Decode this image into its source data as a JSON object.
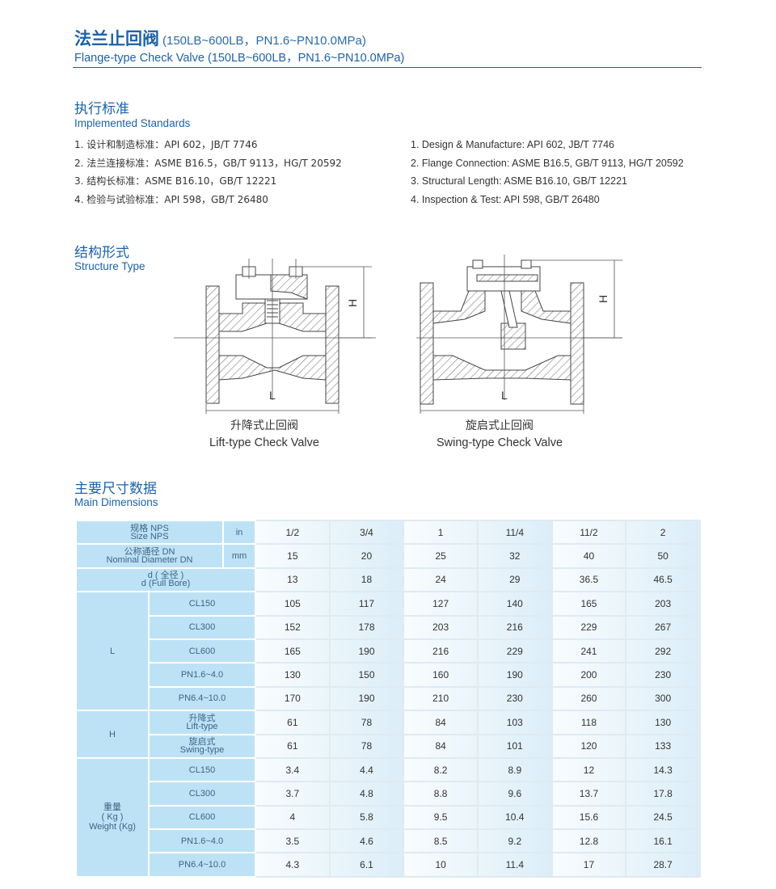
{
  "header": {
    "title_cn": "法兰止回阀",
    "title_spec": "(150LB~600LB，PN1.6~PN10.0MPa)",
    "title_en": "Flange-type Check Valve (150LB~600LB，PN1.6~PN10.0MPa)"
  },
  "standards": {
    "heading_cn": "执行标准",
    "heading_en": "Implemented Standards",
    "items_cn": [
      "1.  设计和制造标准：API 602，JB/T 7746",
      "2.  法兰连接标准：ASME B16.5，GB/T 9113，HG/T 20592",
      "3.  结构长标准：ASME B16.10，GB/T 12221",
      "4.  检验与试验标准：API 598，GB/T 26480"
    ],
    "items_en": [
      "1.  Design & Manufacture: API 602, JB/T 7746",
      "2.  Flange Connection: ASME B16.5, GB/T 9113, HG/T 20592",
      "3.  Structural Length: ASME B16.10, GB/T 12221",
      "4.  Inspection & Test: API 598, GB/T 26480"
    ]
  },
  "structure": {
    "heading_cn": "结构形式",
    "heading_en": "Structure Type",
    "lift": {
      "cn": "升降式止回阀",
      "en": "Lift-type Check Valve",
      "dim_h": "H",
      "dim_l": "L"
    },
    "swing": {
      "cn": "旋启式止回阀",
      "en": "Swing-type Check Valve",
      "dim_h": "H",
      "dim_l": "L"
    }
  },
  "dimensions": {
    "heading_cn": "主要尺寸数据",
    "heading_en": "Main Dimensions",
    "top_rows": [
      {
        "cn": "规格 NPS",
        "en": "Size NPS",
        "unit": "in",
        "values": [
          "1/2",
          "3/4",
          "1",
          "11/4",
          "11/2",
          "2"
        ]
      },
      {
        "cn": "公称通径 DN",
        "en": "Nominal Diameter DN",
        "unit": "mm",
        "values": [
          "15",
          "20",
          "25",
          "32",
          "40",
          "50"
        ]
      },
      {
        "cn": "d ( 全径 )",
        "en": "d (Full Bore)",
        "unit": "",
        "values": [
          "13",
          "18",
          "24",
          "29",
          "36.5",
          "46.5"
        ]
      }
    ],
    "groups": [
      {
        "label": [
          "L"
        ],
        "rows": [
          {
            "sub": [
              "CL150"
            ],
            "values": [
              "105",
              "117",
              "127",
              "140",
              "165",
              "203"
            ]
          },
          {
            "sub": [
              "CL300"
            ],
            "values": [
              "152",
              "178",
              "203",
              "216",
              "229",
              "267"
            ]
          },
          {
            "sub": [
              "CL600"
            ],
            "values": [
              "165",
              "190",
              "216",
              "229",
              "241",
              "292"
            ]
          },
          {
            "sub": [
              "PN1.6~4.0"
            ],
            "values": [
              "130",
              "150",
              "160",
              "190",
              "200",
              "230"
            ]
          },
          {
            "sub": [
              "PN6.4~10.0"
            ],
            "values": [
              "170",
              "190",
              "210",
              "230",
              "260",
              "300"
            ]
          }
        ]
      },
      {
        "label": [
          "H"
        ],
        "rows": [
          {
            "sub": [
              "升降式",
              "Lift-type"
            ],
            "values": [
              "61",
              "78",
              "84",
              "103",
              "118",
              "130"
            ]
          },
          {
            "sub": [
              "旋启式",
              "Swing-type"
            ],
            "values": [
              "61",
              "78",
              "84",
              "101",
              "120",
              "133"
            ]
          }
        ]
      },
      {
        "label": [
          "重量",
          "( Kg )",
          "Weight (Kg)"
        ],
        "rows": [
          {
            "sub": [
              "CL150"
            ],
            "values": [
              "3.4",
              "4.4",
              "8.2",
              "8.9",
              "12",
              "14.3"
            ]
          },
          {
            "sub": [
              "CL300"
            ],
            "values": [
              "3.7",
              "4.8",
              "8.8",
              "9.6",
              "13.7",
              "17.8"
            ]
          },
          {
            "sub": [
              "CL600"
            ],
            "values": [
              "4",
              "5.8",
              "9.5",
              "10.4",
              "15.6",
              "24.5"
            ]
          },
          {
            "sub": [
              "PN1.6~4.0"
            ],
            "values": [
              "3.5",
              "4.6",
              "8.5",
              "9.2",
              "12.8",
              "16.1"
            ]
          },
          {
            "sub": [
              "PN6.4~10.0"
            ],
            "values": [
              "4.3",
              "6.1",
              "10",
              "11.4",
              "17",
              "28.7"
            ]
          }
        ]
      }
    ]
  },
  "colors": {
    "brand": "#1d62a8",
    "label_cell": "#bde2f5"
  }
}
